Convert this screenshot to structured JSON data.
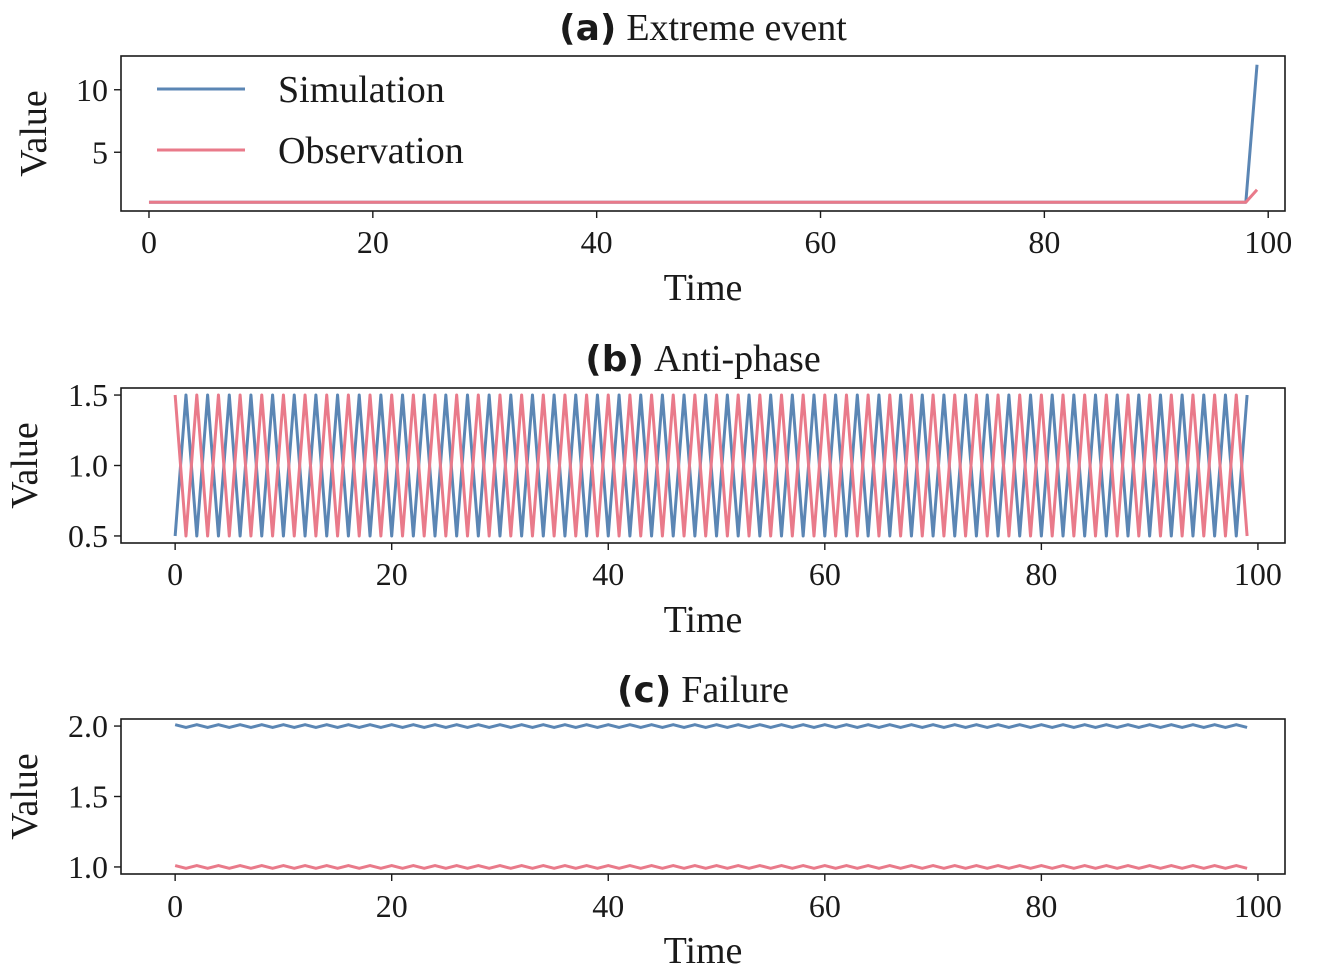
{
  "chart_data": [
    {
      "type": "line",
      "title_prefix": "(a)",
      "title": "Extreme event",
      "xlabel": "Time",
      "ylabel": "Value",
      "xlim": [
        -2.5,
        101.5
      ],
      "ylim": [
        0.3,
        12.7
      ],
      "xticks": [
        0,
        20,
        40,
        60,
        80,
        100
      ],
      "yticks": [
        5,
        10
      ],
      "grid": false,
      "legend": {
        "placement": "top-left"
      },
      "series": [
        {
          "name": "Simulation",
          "color": "#5b86b4",
          "generator": "constant_then_spike",
          "n": 100,
          "base": 1,
          "last": 12,
          "spike_from": 98
        },
        {
          "name": "Observation",
          "color": "#e97a8a",
          "generator": "constant_then_spike",
          "n": 100,
          "base": 1,
          "last": 2,
          "spike_from": 98
        }
      ]
    },
    {
      "type": "line",
      "title_prefix": "(b)",
      "title": "Anti-phase",
      "xlabel": "Time",
      "ylabel": "Value",
      "xlim": [
        -5,
        102.5
      ],
      "ylim": [
        0.45,
        1.55
      ],
      "xticks": [
        0,
        20,
        40,
        60,
        80,
        100
      ],
      "yticks": [
        0.5,
        1.0,
        1.5
      ],
      "grid": false,
      "series": [
        {
          "name": "Simulation",
          "color": "#5b86b4",
          "generator": "alternate",
          "n": 100,
          "even": 0.5,
          "odd": 1.5
        },
        {
          "name": "Observation",
          "color": "#e97a8a",
          "generator": "alternate",
          "n": 100,
          "even": 1.5,
          "odd": 0.5
        }
      ]
    },
    {
      "type": "line",
      "title_prefix": "(c)",
      "title": "Failure",
      "xlabel": "Time",
      "ylabel": "Value",
      "xlim": [
        -5,
        102.5
      ],
      "ylim": [
        0.95,
        2.05
      ],
      "xticks": [
        0,
        20,
        40,
        60,
        80,
        100
      ],
      "yticks": [
        1.0,
        1.5,
        2.0
      ],
      "grid": false,
      "series": [
        {
          "name": "Simulation",
          "color": "#5b86b4",
          "generator": "alternate",
          "n": 100,
          "even": 2.01,
          "odd": 1.99
        },
        {
          "name": "Observation",
          "color": "#e97a8a",
          "generator": "alternate",
          "n": 100,
          "even": 1.01,
          "odd": 0.99
        }
      ]
    }
  ]
}
